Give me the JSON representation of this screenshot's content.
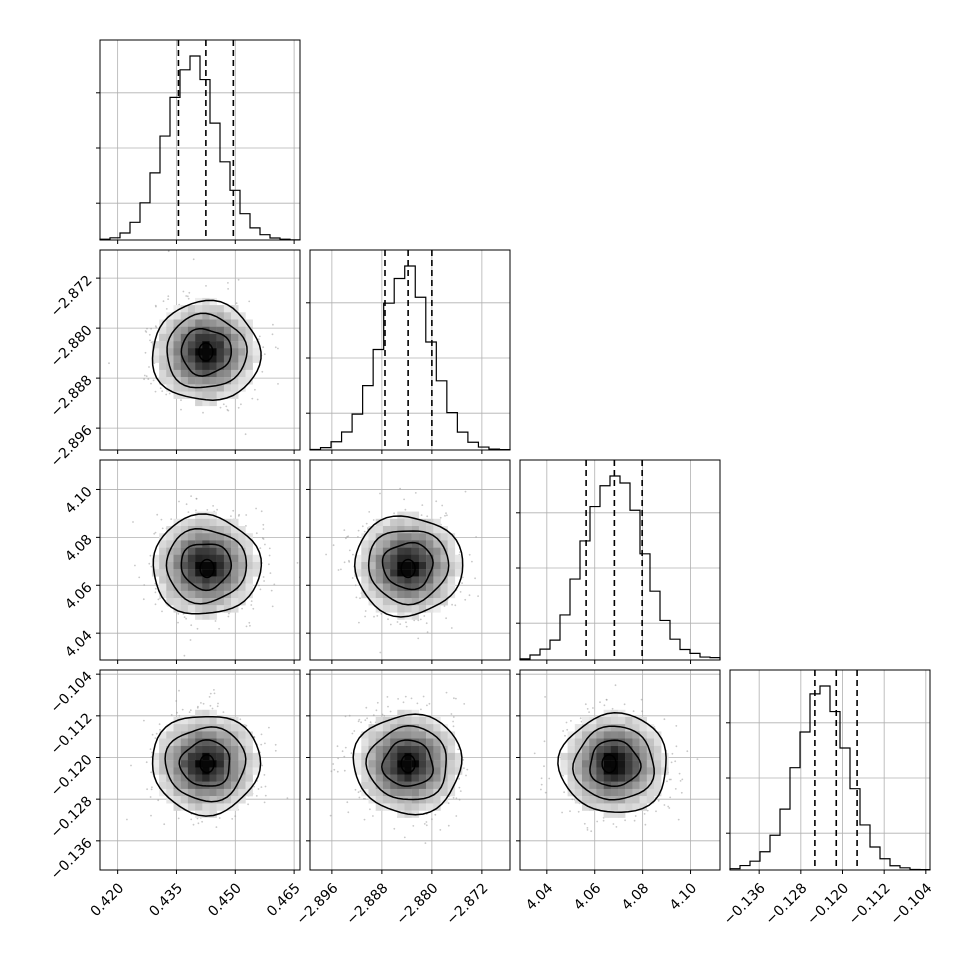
{
  "chart_data": {
    "type": "corner",
    "grid": true,
    "parameters": [
      {
        "ticks": [
          0.42,
          0.435,
          0.45,
          0.465
        ],
        "tick_labels": [
          "0.420",
          "0.435",
          "0.450",
          "0.465"
        ],
        "range": [
          0.4155,
          0.4665
        ],
        "quantiles": [
          0.4355,
          0.4425,
          0.4495
        ],
        "histogram": [
          0.4,
          1.2,
          3.8,
          9.6,
          20.2,
          36.5,
          56.5,
          77.5,
          92.5,
          100,
          87.2,
          63.5,
          42.5,
          27.0,
          14.3,
          6.6,
          2.9,
          1.1,
          0.4,
          0.1
        ]
      },
      {
        "ticks": [
          -2.896,
          -2.888,
          -2.88,
          -2.872
        ],
        "tick_labels": [
          "−2.896",
          "−2.888",
          "−2.880",
          "−2.872"
        ],
        "range": [
          -2.8995,
          -2.8675
        ],
        "quantiles": [
          -2.8875,
          -2.8838,
          -2.88
        ],
        "histogram": [
          0.3,
          1.3,
          4.5,
          9.8,
          19.5,
          35.0,
          54.6,
          79.8,
          93.2,
          100,
          83.0,
          58.7,
          37.6,
          20.3,
          9.7,
          4.2,
          1.6,
          0.5,
          0.2
        ]
      },
      {
        "ticks": [
          4.04,
          4.06,
          4.08,
          4.1
        ],
        "tick_labels": [
          "4.04",
          "4.06",
          "4.08",
          "4.10"
        ],
        "range": [
          4.0288,
          4.1123
        ],
        "quantiles": [
          4.0564,
          4.0682,
          4.0798
        ],
        "histogram": [
          0.6,
          2.7,
          5.9,
          10.8,
          24.5,
          44.0,
          64.7,
          83.4,
          94.7,
          100,
          96.2,
          81.4,
          57.7,
          37.4,
          21.5,
          11.3,
          5.7,
          3.6,
          1.6,
          1.3
        ]
      },
      {
        "ticks": [
          -0.136,
          -0.128,
          -0.12,
          -0.112,
          -0.104
        ],
        "tick_labels": [
          "−0.136",
          "−0.128",
          "−0.120",
          "−0.112",
          "−0.104"
        ],
        "range": [
          -0.1416,
          -0.1032
        ],
        "quantiles": [
          -0.1253,
          -0.1212,
          -0.1172
        ],
        "histogram": [
          0.7,
          2.4,
          4.8,
          9.9,
          18.9,
          33.1,
          55.6,
          75.0,
          95.7,
          100,
          86.1,
          66.3,
          44.2,
          24.5,
          12.5,
          6.1,
          2.3,
          1.2,
          0.3,
          0.2
        ]
      }
    ],
    "pairs": [
      {
        "row": 1,
        "col": 0,
        "center": [
          0.4425,
          -2.8838
        ],
        "peak": [
          0.4425,
          -2.8838
        ]
      },
      {
        "row": 2,
        "col": 0,
        "center": [
          0.4425,
          4.0682
        ],
        "peak": [
          0.4428,
          4.067
        ]
      },
      {
        "row": 2,
        "col": 1,
        "center": [
          -2.8838,
          4.0682
        ],
        "peak": [
          -2.8838,
          4.067
        ]
      },
      {
        "row": 3,
        "col": 0,
        "center": [
          0.4425,
          -0.1212
        ],
        "peak": [
          0.4428,
          -0.1212
        ]
      },
      {
        "row": 3,
        "col": 1,
        "center": [
          -2.8838,
          -0.1212
        ],
        "peak": [
          -2.8838,
          -0.1212
        ]
      },
      {
        "row": 3,
        "col": 2,
        "center": [
          4.0682,
          -0.1212
        ],
        "peak": [
          4.066,
          -0.1212
        ]
      }
    ]
  }
}
